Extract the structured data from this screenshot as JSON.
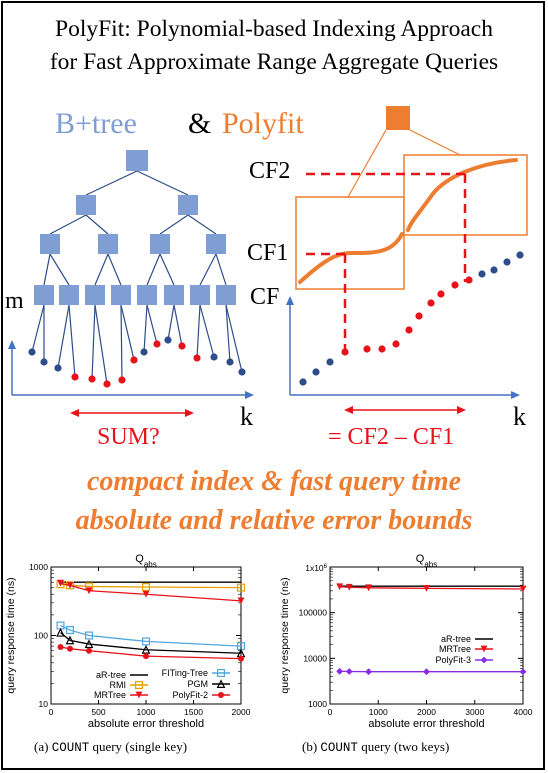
{
  "title": {
    "line1": "PolyFit: Polynomial-based Indexing Approach",
    "line2": "for Fast Approximate Range Aggregate Queries"
  },
  "diagram": {
    "heading_left": "B+tree",
    "heading_amp": "&",
    "heading_right": "Polyfit",
    "left_axis_y": "m",
    "left_axis_x": "k",
    "left_query": "SUM?",
    "right_axis_y": "CF",
    "right_axis_x": "k",
    "cf1": "CF1",
    "cf2": "CF2",
    "right_query": "= CF2 – CF1"
  },
  "tagline": {
    "line1": "compact index & fast query time",
    "line2": "absolute and relative error bounds"
  },
  "colors": {
    "blue": "#7f9fd4",
    "orange": "#ed7d31",
    "red": "#e8121a",
    "navy": "#2f4d8a"
  },
  "chart_data": [
    {
      "type": "line",
      "title": "Q_abs",
      "title_main": "Q",
      "title_sub": "abs",
      "xlabel": "absolute error threshold",
      "ylabel": "query response time (ns)",
      "x": [
        100,
        200,
        400,
        1000,
        2000
      ],
      "xlim": [
        0,
        2000
      ],
      "xticks": [
        0,
        500,
        1000,
        1500,
        2000
      ],
      "ylim": [
        10,
        1000
      ],
      "y_scale": "log",
      "yticks": [
        10,
        100,
        1000
      ],
      "yticklabels": [
        "10",
        "100",
        "1000"
      ],
      "legend_placement": "bottom",
      "series": [
        {
          "name": "aR-tree",
          "color": "#000000",
          "marker": "none",
          "values": [
            600,
            600,
            600,
            600,
            600
          ]
        },
        {
          "name": "RMI",
          "color": "#e6a000",
          "marker": "square",
          "values": [
            560,
            540,
            520,
            510,
            500
          ]
        },
        {
          "name": "MRTree",
          "color": "#e8121a",
          "marker": "triangle-down",
          "values": [
            580,
            540,
            450,
            400,
            320
          ]
        },
        {
          "name": "FITing-Tree",
          "color": "#4ea8e0",
          "marker": "square",
          "values": [
            140,
            120,
            100,
            82,
            70
          ]
        },
        {
          "name": "PGM",
          "color": "#000000",
          "marker": "triangle",
          "values": [
            110,
            85,
            75,
            62,
            55
          ]
        },
        {
          "name": "PolyFit-2",
          "color": "#e8121a",
          "marker": "circle",
          "values": [
            68,
            64,
            60,
            50,
            46
          ]
        }
      ]
    },
    {
      "type": "line",
      "title": "Q_abs",
      "title_main": "Q",
      "title_sub": "abs",
      "xlabel": "absolute error threshold",
      "ylabel": "query response time (ns)",
      "x": [
        200,
        400,
        800,
        2000,
        4000
      ],
      "xlim": [
        0,
        4000
      ],
      "xticks": [
        0,
        1000,
        2000,
        3000,
        4000
      ],
      "ylim": [
        1000,
        1000000
      ],
      "y_scale": "log",
      "yticks": [
        1000,
        10000,
        100000,
        1000000
      ],
      "yticklabels": [
        "1000",
        "10000",
        "100000",
        ""
      ],
      "y_multiplier": "1x10^6",
      "y_multiplier_main": "1x10",
      "y_multiplier_exp": "6",
      "legend_placement": "middle-right",
      "series": [
        {
          "name": "aR-tree",
          "color": "#000000",
          "marker": "none",
          "values": [
            380000,
            380000,
            380000,
            380000,
            380000
          ]
        },
        {
          "name": "MRTree",
          "color": "#e8121a",
          "marker": "triangle-down",
          "values": [
            370000,
            360000,
            350000,
            340000,
            330000
          ]
        },
        {
          "name": "PolyFit-3",
          "color": "#8a2be2",
          "marker": "diamond",
          "values": [
            5200,
            5150,
            5100,
            5100,
            5100
          ]
        }
      ]
    }
  ],
  "captions": {
    "a_prefix": "(a) ",
    "a_mono": "COUNT",
    "a_suffix": " query (single key)",
    "b_prefix": "(b) ",
    "b_mono": "COUNT",
    "b_suffix": " query (two keys)"
  }
}
